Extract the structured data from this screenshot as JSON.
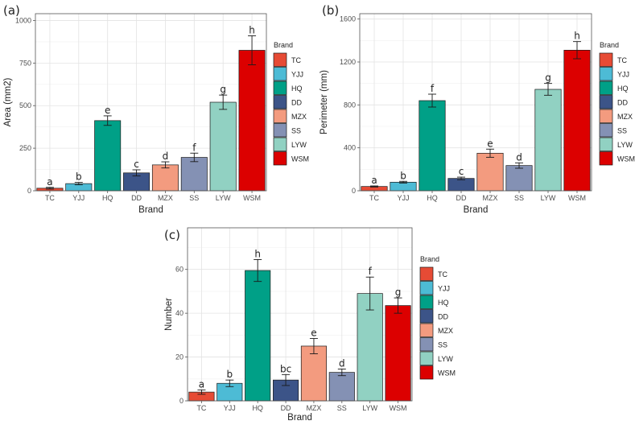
{
  "chart_data": [
    {
      "panel": "(a)",
      "type": "bar",
      "categories": [
        "TC",
        "YJJ",
        "HQ",
        "DD",
        "MZX",
        "SS",
        "LYW",
        "WSM"
      ],
      "values": [
        15,
        42,
        412,
        105,
        152,
        196,
        520,
        825
      ],
      "errors": [
        5,
        7,
        28,
        18,
        18,
        25,
        42,
        85
      ],
      "letters": [
        "a",
        "b",
        "e",
        "c",
        "d",
        "f",
        "g",
        "h"
      ],
      "xlabel": "Brand",
      "ylabel": "Area (mm2)",
      "ylim": [
        0,
        1040
      ],
      "yticks": [
        0,
        250,
        500,
        750,
        1000
      ],
      "grid": true,
      "legend_title": "Brand",
      "legend_position": "right"
    },
    {
      "panel": "(b)",
      "type": "bar",
      "categories": [
        "TC",
        "YJJ",
        "HQ",
        "DD",
        "MZX",
        "SS",
        "LYW",
        "WSM"
      ],
      "values": [
        40,
        80,
        840,
        115,
        350,
        235,
        945,
        1310
      ],
      "errors": [
        5,
        8,
        60,
        12,
        38,
        25,
        55,
        80
      ],
      "letters": [
        "a",
        "b",
        "f",
        "c",
        "e",
        "d",
        "g",
        "h"
      ],
      "xlabel": "Brand",
      "ylabel": "Perimeter (mm)",
      "ylim": [
        0,
        1650
      ],
      "yticks": [
        0,
        400,
        800,
        1200,
        1600
      ],
      "grid": true,
      "legend_title": "Brand",
      "legend_position": "right"
    },
    {
      "panel": "(c)",
      "type": "bar",
      "categories": [
        "TC",
        "YJJ",
        "HQ",
        "DD",
        "MZX",
        "SS",
        "LYW",
        "WSM"
      ],
      "values": [
        4,
        8,
        59.5,
        9.5,
        25,
        13,
        49,
        43.5
      ],
      "errors": [
        1,
        1.5,
        5,
        2.5,
        3.5,
        1.5,
        7.5,
        3.5
      ],
      "letters": [
        "a",
        "b",
        "h",
        "bc",
        "e",
        "d",
        "f",
        "g"
      ],
      "xlabel": "Brand",
      "ylabel": "Number",
      "ylim": [
        0,
        79
      ],
      "yticks": [
        0,
        20,
        40,
        60
      ],
      "grid": true,
      "legend_title": "Brand",
      "legend_position": "right"
    }
  ],
  "colors": {
    "TC": "#e64b35",
    "YJJ": "#4dbbd5",
    "HQ": "#00a087",
    "DD": "#3c5488",
    "MZX": "#f39b7f",
    "SS": "#8491b4",
    "LYW": "#91d1c2",
    "WSM": "#dc0000"
  }
}
